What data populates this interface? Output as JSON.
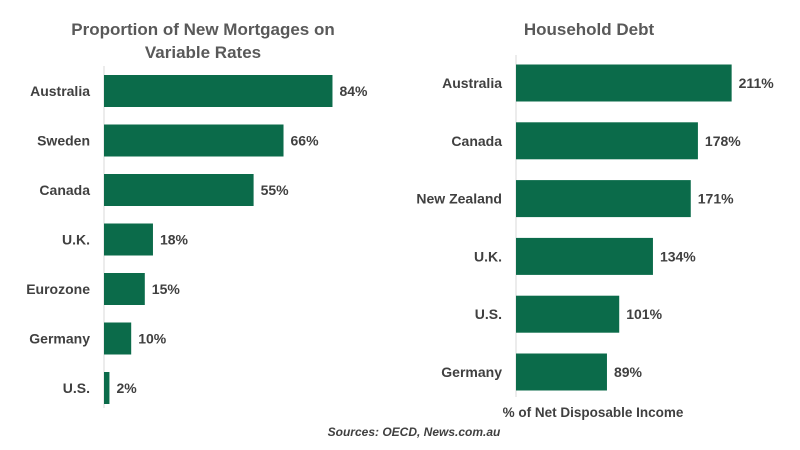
{
  "colors": {
    "bar": "#0b6b4a",
    "text": "#404040",
    "title": "#595959",
    "axis": "#d9d9d9"
  },
  "chart_data": [
    {
      "type": "bar",
      "orientation": "horizontal",
      "title_lines": [
        "Proportion of New Mortgages on",
        "Variable Rates"
      ],
      "categories": [
        "Australia",
        "Sweden",
        "Canada",
        "U.K.",
        "Eurozone",
        "Germany",
        "U.S."
      ],
      "values": [
        84,
        66,
        55,
        18,
        15,
        10,
        2
      ],
      "data_labels": [
        "84%",
        "66%",
        "55%",
        "18%",
        "15%",
        "10%",
        "2%"
      ],
      "xlabel": "",
      "xlim": [
        0,
        100
      ],
      "grid": false
    },
    {
      "type": "bar",
      "orientation": "horizontal",
      "title_lines": [
        "Household Debt"
      ],
      "categories": [
        "Australia",
        "Canada",
        "New Zealand",
        "U.K.",
        "U.S.",
        "Germany"
      ],
      "values": [
        211,
        178,
        171,
        134,
        101,
        89
      ],
      "data_labels": [
        "211%",
        "178%",
        "171%",
        "134%",
        "101%",
        "89%"
      ],
      "xlabel": "% of Net Disposable Income",
      "xlim": [
        0,
        240
      ],
      "grid": false
    }
  ],
  "source": "Sources: OECD, News.com.au"
}
